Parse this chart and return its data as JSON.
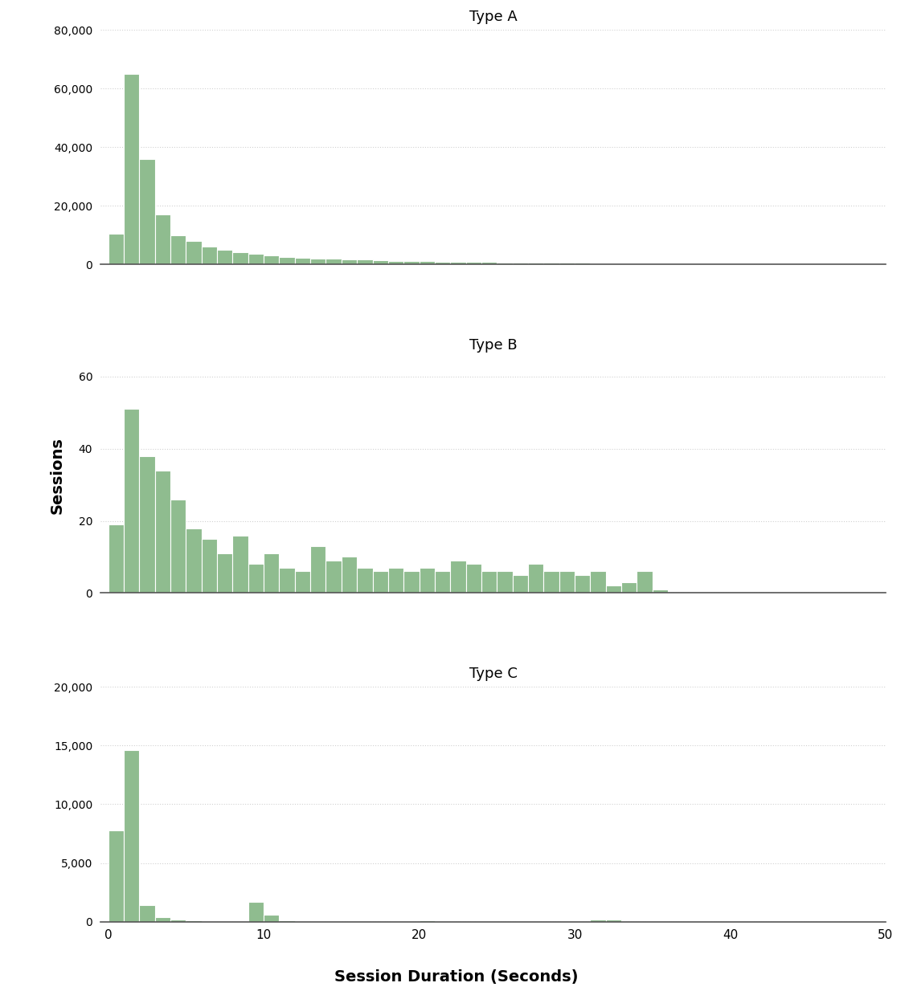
{
  "title_A": "Type A",
  "title_B": "Type B",
  "title_C": "Type C",
  "ylabel": "Sessions",
  "xlabel": "Session Duration (Seconds)",
  "bar_color": "#8FBC8F",
  "bar_edgecolor": "white",
  "background_color": "white",
  "xlim": [
    -0.5,
    50
  ],
  "xticks": [
    0,
    10,
    20,
    30,
    40,
    50
  ],
  "typeA_bins": [
    0,
    1,
    2,
    3,
    4,
    5,
    6,
    7,
    8,
    9,
    10,
    11,
    12,
    13,
    14,
    15,
    16,
    17,
    18,
    19,
    20,
    21,
    22,
    23,
    24,
    25,
    26,
    27,
    28,
    29,
    30,
    31,
    32,
    33,
    34,
    35,
    36,
    37,
    38,
    39,
    40,
    41,
    42,
    43,
    44,
    45,
    46,
    47,
    48,
    49,
    50
  ],
  "typeA_values": [
    10500,
    65000,
    36000,
    17000,
    10000,
    8000,
    6000,
    5000,
    4200,
    3500,
    3000,
    2600,
    2300,
    2100,
    1900,
    1700,
    1600,
    1400,
    1300,
    1200,
    1100,
    1000,
    900,
    850,
    800,
    750,
    700,
    650,
    600,
    550,
    500,
    470,
    440,
    400,
    370,
    340,
    310,
    280,
    260,
    240,
    210,
    190,
    170,
    150,
    130,
    110,
    90,
    70,
    50,
    30
  ],
  "typeB_bins": [
    0,
    1,
    2,
    3,
    4,
    5,
    6,
    7,
    8,
    9,
    10,
    11,
    12,
    13,
    14,
    15,
    16,
    17,
    18,
    19,
    20,
    21,
    22,
    23,
    24,
    25,
    26,
    27,
    28,
    29,
    30,
    31,
    32,
    33,
    34,
    35,
    36,
    37,
    38,
    39,
    40,
    41,
    42,
    43,
    44,
    45,
    46,
    47,
    48,
    49,
    50
  ],
  "typeB_values": [
    19,
    51,
    38,
    34,
    26,
    18,
    15,
    11,
    16,
    8,
    11,
    7,
    6,
    13,
    9,
    10,
    7,
    6,
    7,
    6,
    7,
    6,
    9,
    8,
    6,
    6,
    5,
    8,
    6,
    6,
    5,
    6,
    2,
    3,
    6,
    1,
    0,
    0,
    0,
    0,
    0,
    0,
    0,
    0,
    0,
    0,
    0,
    0,
    0,
    0
  ],
  "typeC_bins": [
    0,
    1,
    2,
    3,
    4,
    5,
    6,
    7,
    8,
    9,
    10,
    11,
    12,
    13,
    14,
    15,
    16,
    17,
    18,
    19,
    20,
    21,
    22,
    23,
    24,
    25,
    26,
    27,
    28,
    29,
    30,
    31,
    32,
    33,
    34,
    35,
    36,
    37,
    38,
    39,
    40,
    41,
    42,
    43,
    44,
    45,
    46,
    47,
    48,
    49,
    50
  ],
  "typeC_values": [
    7800,
    14600,
    1400,
    400,
    200,
    100,
    50,
    50,
    50,
    1700,
    600,
    100,
    50,
    50,
    50,
    0,
    0,
    0,
    0,
    0,
    100,
    50,
    0,
    0,
    0,
    0,
    0,
    0,
    0,
    0,
    0,
    200,
    200,
    0,
    0,
    0,
    0,
    0,
    0,
    0,
    0,
    0,
    0,
    0,
    0,
    0,
    0,
    0,
    0,
    0
  ]
}
